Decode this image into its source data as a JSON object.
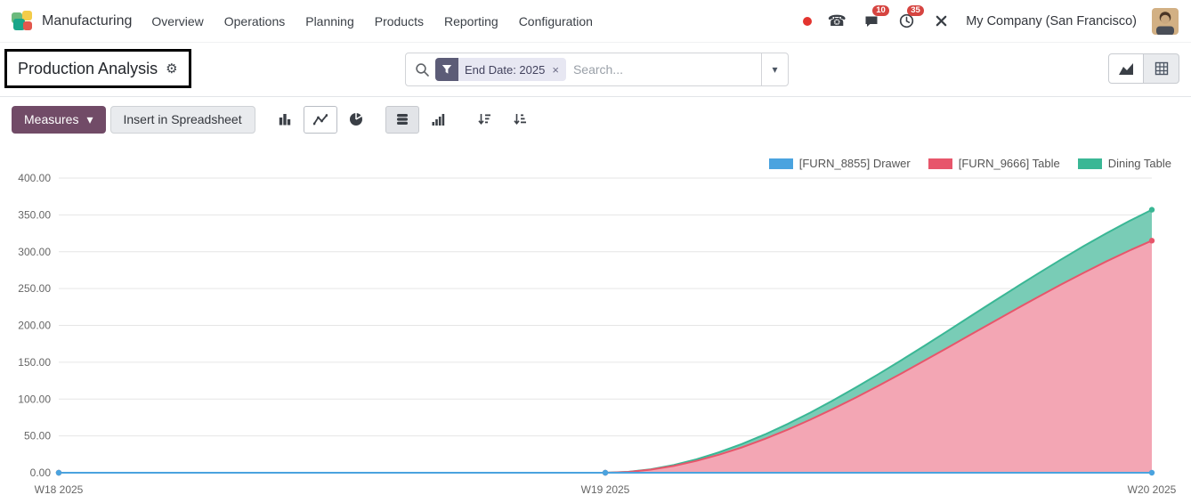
{
  "app": {
    "name": "Manufacturing",
    "menu": [
      "Overview",
      "Operations",
      "Planning",
      "Products",
      "Reporting",
      "Configuration"
    ],
    "badges": {
      "messages": "10",
      "activities": "35"
    },
    "company": "My Company (San Francisco)"
  },
  "glyphs": {
    "gear": "⚙",
    "caret": "▾",
    "close": "×",
    "phone": "☎"
  },
  "control_panel": {
    "title": "Production Analysis",
    "search": {
      "facet_label": "End Date: 2025",
      "placeholder": "Search..."
    }
  },
  "toolbar": {
    "measures_label": "Measures",
    "spreadsheet_label": "Insert in Spreadsheet"
  },
  "colors": {
    "primary": "#714b67",
    "drawer_blue": "#4aa3df",
    "table_red": "#e7566b",
    "dining_teal": "#3ab795"
  },
  "chart_data": {
    "type": "area",
    "stacked": true,
    "x": [
      "W18 2025",
      "W19 2025",
      "W20 2025"
    ],
    "series": [
      {
        "name": "[FURN_8855] Drawer",
        "color": "#4aa3df",
        "fill": null,
        "values": [
          0,
          0,
          0
        ]
      },
      {
        "name": "[FURN_9666] Table",
        "color": "#e7566b",
        "fill": "#f3a6b4",
        "values": [
          0,
          0,
          315
        ]
      },
      {
        "name": "Dining Table",
        "color": "#3ab795",
        "fill": "#79ccb6",
        "values": [
          0,
          0,
          42
        ]
      }
    ],
    "ylim": [
      0,
      400
    ],
    "yticks": [
      0,
      50,
      100,
      150,
      200,
      250,
      300,
      350,
      400
    ],
    "ytick_labels": [
      "0.00",
      "50.00",
      "100.00",
      "150.00",
      "200.00",
      "250.00",
      "300.00",
      "350.00",
      "400.00"
    ],
    "legend_position": "top-right",
    "grid": true
  }
}
